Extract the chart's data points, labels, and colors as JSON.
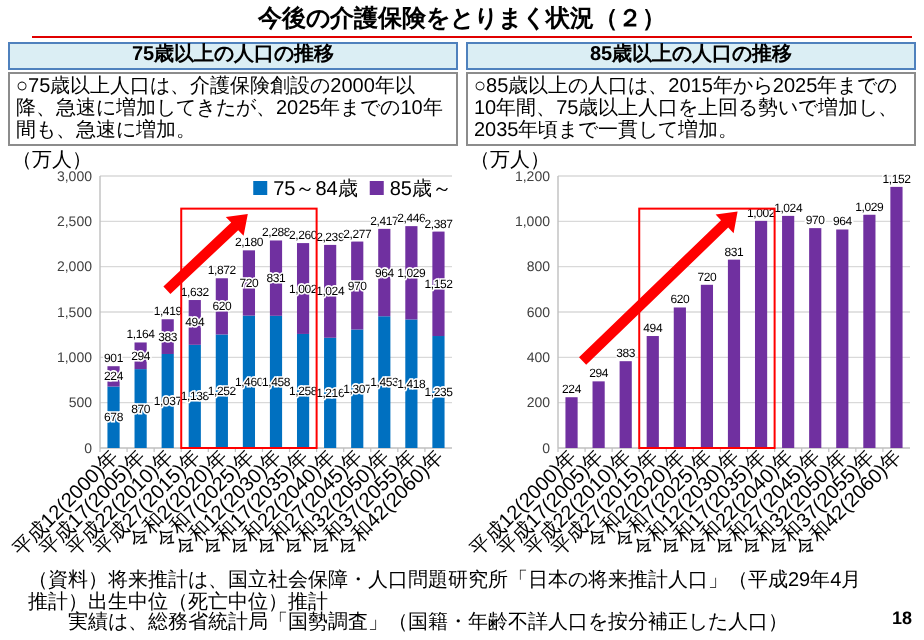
{
  "chart_data": [
    {
      "type": "other",
      "title": "今後の介護保険をとりまく状況（２）",
      "annotations": [
        "（資料）将来推計は、国立社会保障・人口問題研究所「日本の将来推計人口」（平成29年4月推計）出生中位（死亡中位）推計",
        "実績は、総務省統計局「国勢調査」（国籍・年齢不詳人口を按分補正した人口）",
        "18"
      ]
    },
    {
      "type": "bar",
      "stacked": true,
      "title": "75歳以上の人口の推移",
      "subtitle": "○75歳以上人口は、介護保険創設の2000年以降、急速に増加してきたが、2025年までの10年間も、急速に増加。",
      "ylabel": "（万人）",
      "categories": [
        "平成12(2000)年",
        "平成17(2005)年",
        "平成22(2010)年",
        "平成27(2015)年",
        "令和2(2020)年",
        "令和7(2025)年",
        "令和12(2030)年",
        "令和17(2035)年",
        "令和22(2040)年",
        "令和27(2045)年",
        "令和32(2050)年",
        "令和37(2055)年",
        "令和42(2060)年"
      ],
      "series": [
        {
          "name": "75～84歳",
          "color": "#0070c0",
          "values": [
            678,
            870,
            1037,
            1138,
            1252,
            1460,
            1458,
            1258,
            1216,
            1307,
            1453,
            1418,
            1235
          ],
          "value_labels": [
            "678",
            "870",
            "1,037",
            "1,138",
            "1,252",
            "1,460",
            "1,458",
            "1,258",
            "1,216",
            "1,307",
            "1,453",
            "1,418",
            "1,235"
          ]
        },
        {
          "name": "85歳～",
          "color": "#7030a0",
          "values": [
            224,
            294,
            383,
            494,
            620,
            720,
            831,
            1002,
            1024,
            970,
            964,
            1029,
            1152
          ],
          "value_labels": [
            "224",
            "294",
            "383",
            "494",
            "620",
            "720",
            "831",
            "1,002",
            "1,024",
            "970",
            "964",
            "1,029",
            "1,152"
          ]
        }
      ],
      "totals": [
        "901",
        "1,164",
        "1,419",
        "1,632",
        "1,872",
        "2,180",
        "2,288",
        "2,260",
        "2,239",
        "2,277",
        "2,417",
        "2,446",
        "2,387"
      ],
      "ylim": [
        0,
        3000
      ],
      "yticks": [
        0,
        500,
        {
          "value": 1000,
          "label": "1,000"
        },
        {
          "value": 1500,
          "label": "1,500"
        },
        {
          "value": 2000,
          "label": "2,000"
        },
        {
          "value": 2500,
          "label": "2,500"
        },
        {
          "value": 3000,
          "label": "3,000"
        }
      ],
      "grid": "y",
      "legend": "top right"
    },
    {
      "type": "bar",
      "title": "85歳以上の人口の推移",
      "subtitle": "○85歳以上の人口は、2015年から2025年までの10年間、75歳以上人口を上回る勢いで増加し、2035年頃まで一貫して増加。",
      "ylabel": "（万人）",
      "categories": [
        "平成12(2000)年",
        "平成17(2005)年",
        "平成22(2010)年",
        "平成27(2015)年",
        "令和2(2020)年",
        "令和7(2025)年",
        "令和12(2030)年",
        "令和17(2035)年",
        "令和22(2040)年",
        "令和27(2045)年",
        "令和32(2050)年",
        "令和37(2055)年",
        "令和42(2060)年"
      ],
      "color": "#7030a0",
      "values": [
        224,
        294,
        383,
        494,
        620,
        720,
        831,
        1002,
        1024,
        970,
        964,
        1029,
        1152
      ],
      "value_labels": [
        "224",
        "294",
        "383",
        "494",
        "620",
        "720",
        "831",
        "1,002",
        "1,024",
        "970",
        "964",
        "1,029",
        "1,152"
      ],
      "ylim": [
        0,
        1200
      ],
      "yticks": [
        0,
        200,
        400,
        600,
        800,
        {
          "value": 1000,
          "label": "1,000"
        },
        {
          "value": 1200,
          "label": "1,200"
        }
      ],
      "grid": "y"
    }
  ]
}
